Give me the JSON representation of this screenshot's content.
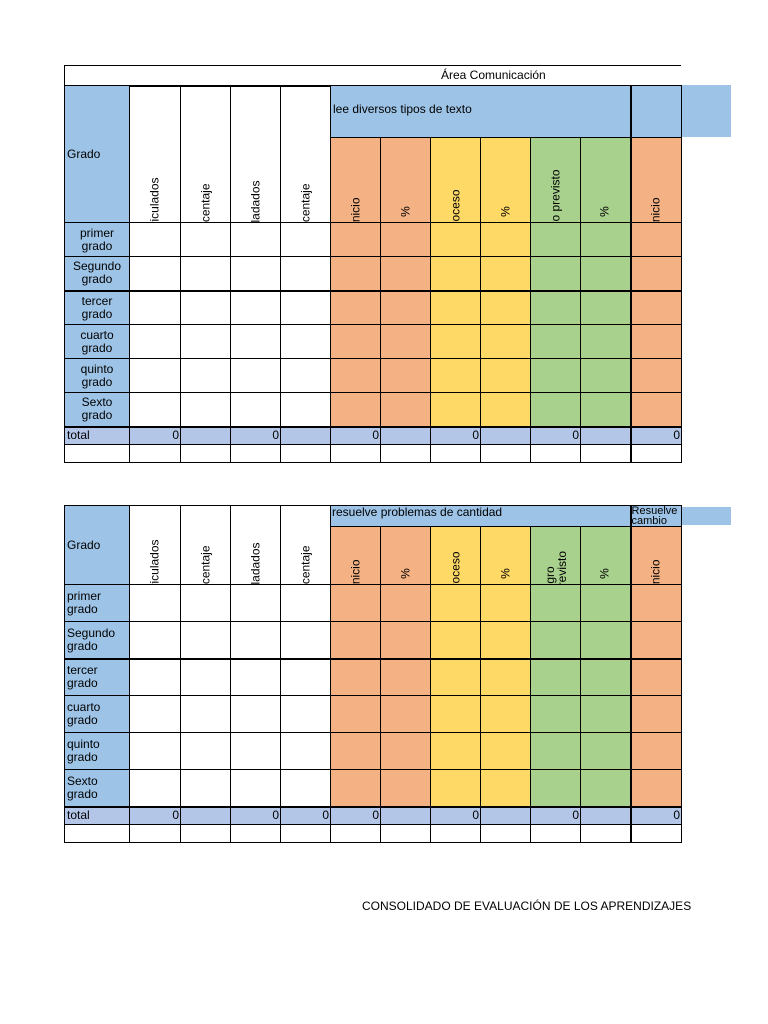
{
  "area_title": "Área Comunicación",
  "footer": "CONSOLIDADO DE EVALUACIÓN DE LOS APRENDIZAJES",
  "table1": {
    "grado_header": "Grado",
    "competency": "lee diversos tipos de texto",
    "cols": [
      "matriculados",
      "porcentaje",
      "trasladados",
      "porcentaje",
      "Inicio",
      "%",
      "Proceso",
      "%",
      "logro previsto",
      "%",
      "Inicio"
    ],
    "rows": [
      [
        "primer",
        "grado"
      ],
      [
        "Segundo",
        "grado"
      ],
      [
        "tercer",
        "grado"
      ],
      [
        "cuarto",
        "grado"
      ],
      [
        "quinto",
        "grado"
      ],
      [
        "Sexto",
        "grado"
      ]
    ],
    "total_label": "total",
    "totals": [
      "0",
      "",
      "0",
      "",
      "0",
      "",
      "0",
      "",
      "0",
      "",
      "0"
    ]
  },
  "table2": {
    "grado_header": "Grado",
    "competency": "resuelve problemas de cantidad",
    "competency_next": "Resuelve cambio",
    "cols": [
      "matriculados",
      "porcentaje",
      "trasladados",
      "porcentaje",
      "Inicio",
      "%",
      "Proceso",
      "%",
      "logro previsto",
      "%",
      "Inicio"
    ],
    "rows": [
      [
        "primer",
        "grado"
      ],
      [
        "Segundo",
        "grado"
      ],
      [
        "tercer",
        "grado"
      ],
      [
        "cuarto",
        "grado"
      ],
      [
        "quinto",
        "grado"
      ],
      [
        "Sexto",
        "grado"
      ]
    ],
    "total_label": "total",
    "totals": [
      "0",
      "",
      "0",
      "0",
      "0",
      "",
      "0",
      "",
      "0",
      "",
      "0"
    ]
  }
}
